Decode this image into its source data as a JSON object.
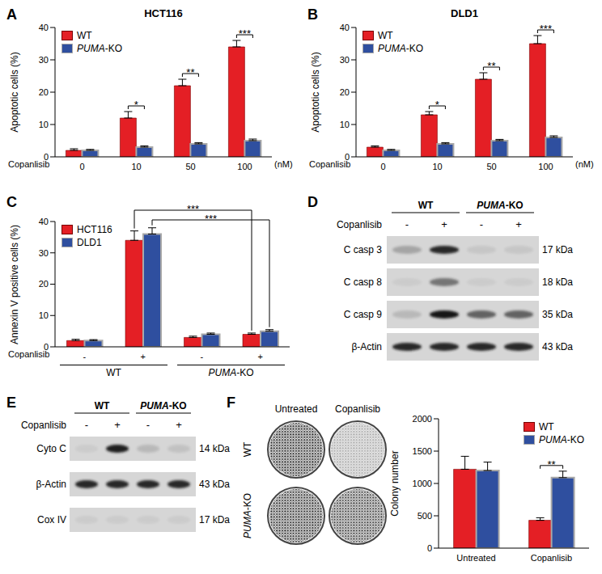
{
  "chart_data": [
    {
      "panel": "A",
      "type": "bar",
      "title": "HCT116",
      "ylabel": "Apoptotic cells (%)",
      "xlabel": "Copanlisib",
      "x_unit": "(nM)",
      "categories": [
        "0",
        "10",
        "50",
        "100"
      ],
      "series": [
        {
          "name": "WT",
          "color": "#e41f25",
          "values": [
            2,
            12,
            22,
            34
          ],
          "errors": [
            0.5,
            2,
            2,
            2
          ]
        },
        {
          "name": "PUMA-KO",
          "color": "#2f4f9f",
          "values": [
            2,
            3,
            4,
            5
          ],
          "errors": [
            0.3,
            0.4,
            0.4,
            0.5
          ]
        }
      ],
      "ylim": [
        0,
        40
      ],
      "yticks": [
        0,
        10,
        20,
        30,
        40
      ],
      "legend": "upper left",
      "significance": [
        null,
        "*",
        "**",
        "***"
      ]
    },
    {
      "panel": "B",
      "type": "bar",
      "title": "DLD1",
      "ylabel": "Apoptotic cells (%)",
      "xlabel": "Copanlisib",
      "x_unit": "(nM)",
      "categories": [
        "0",
        "10",
        "50",
        "100"
      ],
      "series": [
        {
          "name": "WT",
          "color": "#e41f25",
          "values": [
            3,
            13,
            24,
            35
          ],
          "errors": [
            0.4,
            1,
            2,
            2.5
          ]
        },
        {
          "name": "PUMA-KO",
          "color": "#2f4f9f",
          "values": [
            2,
            4,
            5,
            6
          ],
          "errors": [
            0.3,
            0.4,
            0.4,
            0.5
          ]
        }
      ],
      "ylim": [
        0,
        40
      ],
      "yticks": [
        0,
        10,
        20,
        30,
        40
      ],
      "legend": "upper left",
      "significance": [
        null,
        "*",
        "**",
        "***"
      ]
    },
    {
      "panel": "C",
      "type": "bar",
      "ylabel": "Annexin V positive cells (%)",
      "xlabel": "Copanlisib",
      "categories": [
        "-",
        "+",
        "-",
        "+"
      ],
      "groups": [
        {
          "label": "WT",
          "categories": [
            0,
            1
          ]
        },
        {
          "label": "PUMA-KO",
          "categories": [
            2,
            3
          ]
        }
      ],
      "series": [
        {
          "name": "HCT116",
          "color": "#e41f25",
          "values": [
            2,
            34,
            3,
            4
          ],
          "errors": [
            0.4,
            3,
            0.4,
            0.4
          ]
        },
        {
          "name": "DLD1",
          "color": "#2f4f9f",
          "values": [
            2,
            36,
            4,
            5
          ],
          "errors": [
            0.3,
            2,
            0.4,
            0.5
          ]
        }
      ],
      "ylim": [
        0,
        40
      ],
      "yticks": [
        0,
        10,
        20,
        30,
        40
      ],
      "legend": "upper left",
      "brackets": [
        {
          "series": "HCT116",
          "from": 1,
          "to": 3,
          "label": "***"
        },
        {
          "series": "DLD1",
          "from": 1,
          "to": 3,
          "label": "***"
        }
      ]
    },
    {
      "panel": "F",
      "type": "bar",
      "ylabel": "Colony number",
      "categories": [
        "Untreated",
        "Copanlisib"
      ],
      "series": [
        {
          "name": "WT",
          "color": "#e41f25",
          "values": [
            1220,
            430
          ],
          "errors": [
            200,
            40
          ]
        },
        {
          "name": "PUMA-KO",
          "color": "#2f4f9f",
          "values": [
            1200,
            1090
          ],
          "errors": [
            130,
            100
          ]
        }
      ],
      "ylim": [
        0,
        2000
      ],
      "yticks": [
        0,
        500,
        1000,
        1500,
        2000
      ],
      "legend": "upper right",
      "significance": [
        null,
        "**"
      ]
    }
  ],
  "blots": [
    {
      "panel": "D",
      "groups": [
        {
          "label": "WT",
          "lanes": [
            0,
            1
          ]
        },
        {
          "label": "PUMA-KO",
          "lanes": [
            2,
            3
          ]
        }
      ],
      "treatment": {
        "label": "Copanlisib",
        "lanes": [
          "-",
          "+",
          "-",
          "+"
        ]
      },
      "rows": [
        {
          "name": "C casp 3",
          "size": "17 kDa",
          "intensity": [
            0.25,
            0.9,
            0.08,
            0.08
          ]
        },
        {
          "name": "C casp 8",
          "size": "18 kDa",
          "intensity": [
            0.05,
            0.5,
            0.05,
            0.05
          ]
        },
        {
          "name": "C casp 9",
          "size": "35 kDa",
          "intensity": [
            0.15,
            1,
            0.6,
            0.6
          ]
        },
        {
          "name": "β-Actin",
          "size": "43 kDa",
          "intensity": [
            0.9,
            0.9,
            0.9,
            0.9
          ]
        }
      ]
    },
    {
      "panel": "E",
      "groups": [
        {
          "label": "WT",
          "lanes": [
            0,
            1
          ]
        },
        {
          "label": "PUMA-KO",
          "lanes": [
            2,
            3
          ]
        }
      ],
      "treatment": {
        "label": "Copanlisib",
        "lanes": [
          "-",
          "+",
          "-",
          "+"
        ]
      },
      "rows": [
        {
          "name": "Cyto C",
          "size": "14 kDa",
          "intensity": [
            0.05,
            0.95,
            0.15,
            0.1
          ]
        },
        {
          "name": "β-Actin",
          "size": "43 kDa",
          "intensity": [
            0.9,
            0.9,
            0.9,
            0.9
          ]
        },
        {
          "name": "Cox IV",
          "size": "17 kDa",
          "intensity": [
            0.05,
            0.05,
            0.05,
            0.05
          ]
        }
      ]
    }
  ]
}
